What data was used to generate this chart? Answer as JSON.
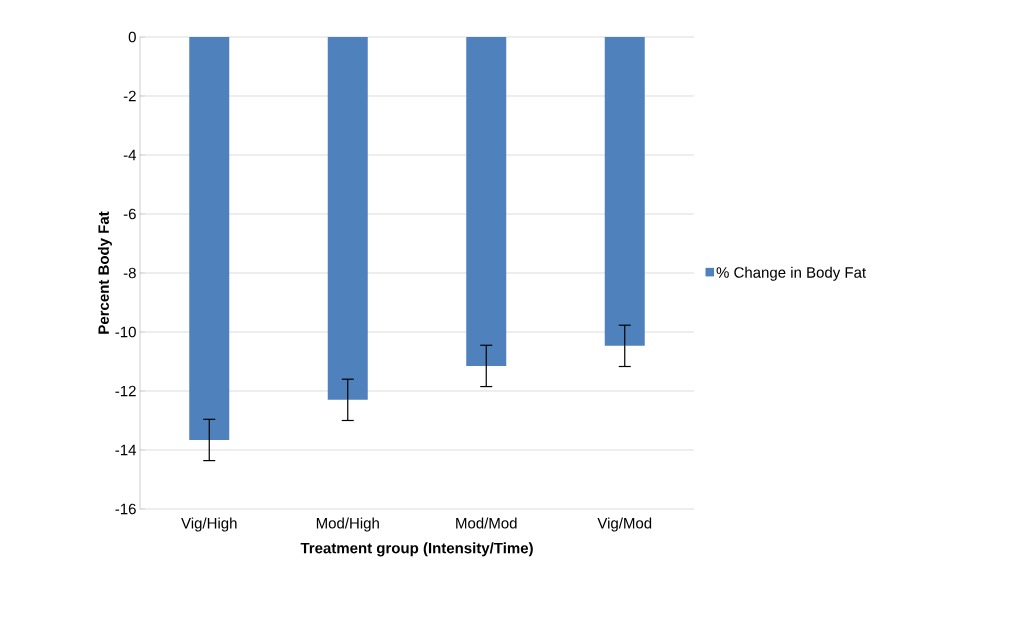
{
  "chart_data": {
    "type": "bar",
    "xlabel": "Treatment group (Intensity/Time)",
    "ylabel": "Percent Body Fat",
    "categories": [
      "Vig/High",
      "Mod/High",
      "Mod/Mod",
      "Vig/Mod"
    ],
    "series": [
      {
        "name": "% Change in Body Fat",
        "color": "#4f81bd",
        "values": [
          -13.66,
          -12.3,
          -11.15,
          -10.47
        ],
        "errors": [
          0.7,
          0.7,
          0.7,
          0.7
        ]
      }
    ],
    "ylim": [
      -16,
      0
    ],
    "yticks": [
      -16,
      -14,
      -12,
      -10,
      -8,
      -6,
      -4,
      -2,
      0
    ],
    "grid": "y",
    "legend": "right"
  }
}
